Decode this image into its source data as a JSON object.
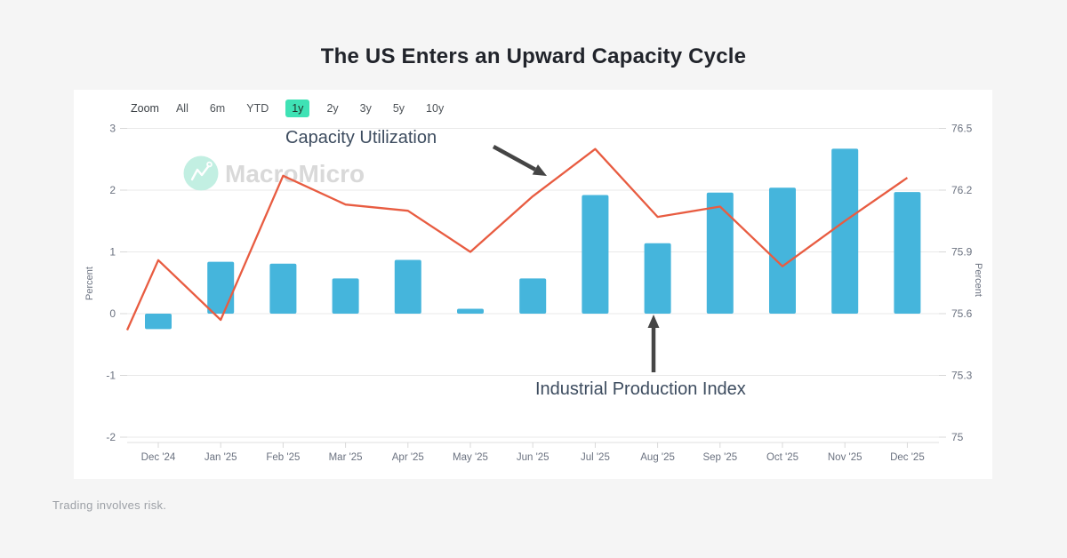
{
  "page": {
    "title": "The US Enters an Upward Capacity Cycle",
    "footer": "Trading involves risk."
  },
  "toolbar": {
    "zoom_label": "Zoom",
    "ranges": [
      "All",
      "6m",
      "YTD",
      "1y",
      "2y",
      "3y",
      "5y",
      "10y"
    ],
    "selected": "1y"
  },
  "watermark": {
    "brand": "MacroMicro",
    "icon": "macromicro-logo-icon",
    "circle_color": "#c2efe2",
    "text_color": "#d9d9d9"
  },
  "annotations": {
    "line_label": "Capacity Utilization",
    "bars_label": "Industrial Production Index",
    "arrow_color": "#454545"
  },
  "chart_data": {
    "type": "bar",
    "title": "The US Enters an Upward Capacity Cycle",
    "categories": [
      "Dec '24",
      "Jan '25",
      "Feb '25",
      "Mar '25",
      "Apr '25",
      "May '25",
      "Jun '25",
      "Jul '25",
      "Aug '25",
      "Sep '25",
      "Oct '25",
      "Nov '25",
      "Dec '25"
    ],
    "series": [
      {
        "name": "Industrial Production Index",
        "type": "bar",
        "axis": "left",
        "color": "#45b5dc",
        "values": [
          -0.25,
          0.84,
          0.81,
          0.57,
          0.87,
          0.08,
          0.57,
          1.92,
          1.14,
          1.96,
          2.04,
          2.67,
          1.97
        ]
      },
      {
        "name": "Capacity Utilization",
        "type": "line",
        "axis": "right",
        "color": "#e85c41",
        "pre_start_value": 75.52,
        "values": [
          75.86,
          75.57,
          76.27,
          76.13,
          76.1,
          75.9,
          76.17,
          76.4,
          76.07,
          76.12,
          75.83,
          76.05,
          76.26
        ]
      }
    ],
    "left_axis": {
      "label": "Percent",
      "ticks": [
        3,
        2,
        1,
        0,
        -1,
        -2
      ],
      "range": [
        -2.1,
        3.15
      ]
    },
    "right_axis": {
      "label": "Percent",
      "ticks": [
        76.5,
        76.2,
        75.9,
        75.6,
        75.3,
        75
      ],
      "range": [
        74.97,
        76.52
      ]
    },
    "grid": true,
    "legend": false,
    "colors": {
      "grid": "#e9e9e9",
      "axis_line": "#dfdfdf",
      "tick": "#d8d8d8",
      "tick_label": "#6b7280"
    }
  }
}
